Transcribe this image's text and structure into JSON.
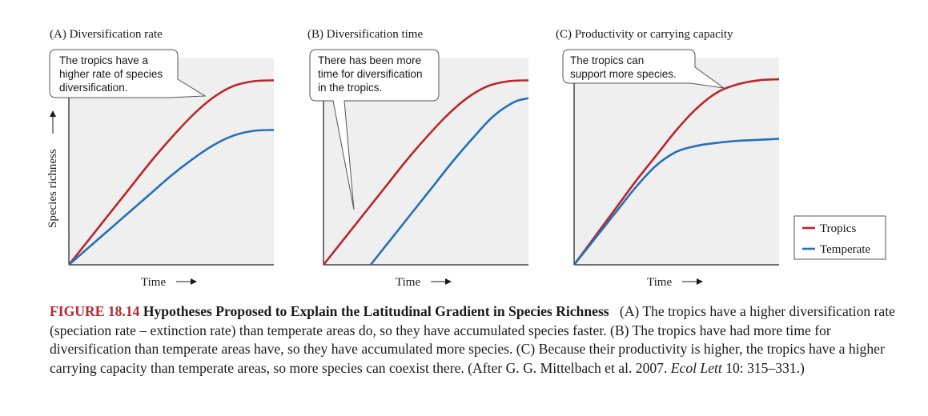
{
  "chart_data": [
    {
      "type": "line",
      "title": "(A) Diversification rate",
      "xlabel": "Time",
      "ylabel": "Species richness",
      "xlim": [
        0,
        10
      ],
      "ylim": [
        0,
        10
      ],
      "series": [
        {
          "name": "Tropics",
          "color": "#b8262b",
          "x": [
            0,
            1,
            2,
            3,
            4,
            5,
            6,
            7,
            8,
            9,
            10
          ],
          "y": [
            0,
            1.3,
            2.6,
            3.9,
            5.2,
            6.4,
            7.5,
            8.4,
            9.0,
            9.25,
            9.3
          ]
        },
        {
          "name": "Temperate",
          "color": "#2470b5",
          "x": [
            0,
            1,
            2,
            3,
            4,
            5,
            6,
            7,
            8,
            9,
            10
          ],
          "y": [
            0,
            0.9,
            1.8,
            2.7,
            3.6,
            4.5,
            5.3,
            6.0,
            6.5,
            6.75,
            6.8
          ]
        }
      ],
      "annotation": "The tropics have a higher rate of species diversification."
    },
    {
      "type": "line",
      "title": "(B) Diversification time",
      "xlabel": "Time",
      "ylabel": "",
      "xlim": [
        0,
        10
      ],
      "ylim": [
        0,
        10
      ],
      "series": [
        {
          "name": "Tropics",
          "color": "#b8262b",
          "x": [
            0,
            1,
            2,
            3,
            4,
            5,
            6,
            7,
            8,
            9,
            10
          ],
          "y": [
            0,
            1.3,
            2.6,
            3.9,
            5.2,
            6.4,
            7.5,
            8.4,
            9.0,
            9.25,
            9.3
          ]
        },
        {
          "name": "Temperate",
          "color": "#2470b5",
          "x": [
            2.3,
            3.3,
            4.3,
            5.3,
            6.3,
            7.3,
            8.3,
            9.3,
            10
          ],
          "y": [
            0,
            1.3,
            2.6,
            3.9,
            5.2,
            6.4,
            7.5,
            8.2,
            8.4
          ]
        }
      ],
      "annotation": "There has been more time for diversification in the tropics."
    },
    {
      "type": "line",
      "title": "(C) Productivity or carrying capacity",
      "xlabel": "Time",
      "ylabel": "",
      "xlim": [
        0,
        10
      ],
      "ylim": [
        0,
        10
      ],
      "series": [
        {
          "name": "Tropics",
          "color": "#b8262b",
          "x": [
            0,
            1,
            2,
            3,
            4,
            5,
            6,
            7,
            8,
            9,
            10
          ],
          "y": [
            0,
            1.4,
            2.8,
            4.2,
            5.5,
            6.8,
            7.9,
            8.7,
            9.1,
            9.3,
            9.35
          ]
        },
        {
          "name": "Temperate",
          "color": "#2470b5",
          "x": [
            0,
            1,
            2,
            3,
            4,
            5,
            6,
            7,
            8,
            9,
            10
          ],
          "y": [
            0,
            1.3,
            2.6,
            3.9,
            5.0,
            5.7,
            6.0,
            6.15,
            6.25,
            6.3,
            6.35
          ]
        }
      ],
      "annotation": "The tropics can support more species."
    }
  ],
  "legend": {
    "items": [
      {
        "label": "Tropics",
        "color": "#b8262b"
      },
      {
        "label": "Temperate",
        "color": "#2470b5"
      }
    ]
  },
  "caption": {
    "label": "FIGURE 18.14",
    "title": "Hypotheses Proposed to Explain the Latitudinal Gradient in Species Richness",
    "body": "(A) The tropics have a higher diversification rate (speciation rate – extinction rate) than temperate areas do, so they have accumulated species faster. (B) The tropics have had more time for diversification than temperate areas have, so they have accumulated more species. (C) Because their productivity is higher, the tropics have a higher carrying capacity than temperate areas, so more species can coexist there. (After G. G. Mittelbach et al. 2007.",
    "journal": "Ecol Lett",
    "citation_end": "10: 315–331.)"
  }
}
